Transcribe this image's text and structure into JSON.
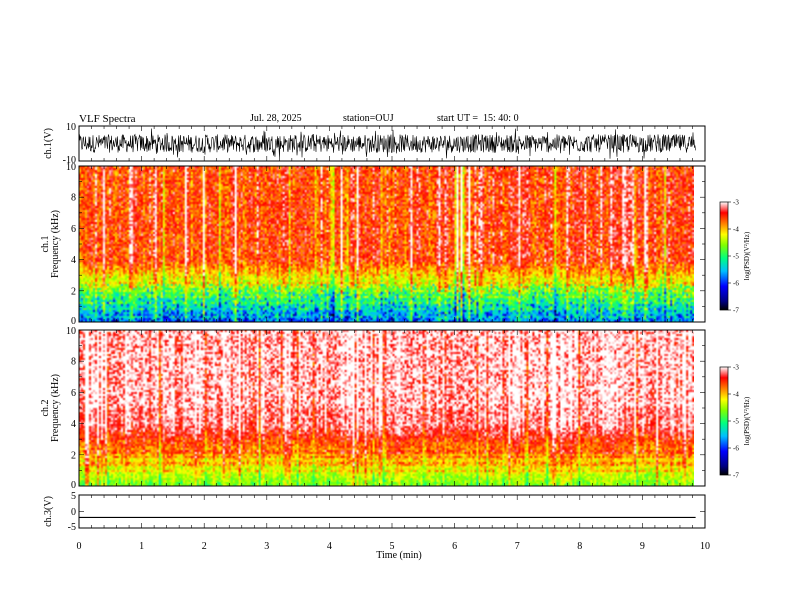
{
  "header": {
    "title": "VLF Spectra",
    "date": "Jul. 28, 2025",
    "station": "station=OUJ",
    "start": "start UT =  15: 40: 0"
  },
  "chart_data": [
    {
      "type": "line",
      "panel": "ch1-waveform",
      "ylabel": "ch.1(V)",
      "ylim": [
        -10,
        10
      ],
      "yticks": [
        "10",
        "-10"
      ],
      "xlim": [
        0,
        10
      ],
      "description_values": {
        "baseline": 0,
        "typical_amplitude": 7
      }
    },
    {
      "type": "heatmap",
      "panel": "ch1-spectrogram",
      "ylabel_line1": "ch.1",
      "ylabel_line2": "Frequency (kHz)",
      "ylim": [
        0,
        10
      ],
      "yticks": [
        "0",
        "2",
        "4",
        "6",
        "8",
        "10"
      ],
      "xlim": [
        0,
        9.85
      ],
      "colorbar": {
        "label": "log(PSD)(V²/Hz)",
        "range": [
          -7,
          -3
        ],
        "ticks": [
          "-3",
          "-4",
          "-5",
          "-6",
          "-7"
        ]
      }
    },
    {
      "type": "heatmap",
      "panel": "ch2-spectrogram",
      "ylabel_line1": "ch.2",
      "ylabel_line2": "Frequency (kHz)",
      "ylim": [
        0,
        10
      ],
      "yticks": [
        "0",
        "2",
        "4",
        "6",
        "8",
        "10"
      ],
      "xlim": [
        0,
        9.85
      ],
      "colorbar": {
        "label": "log(PSD)(V²/Hz)",
        "range": [
          -7,
          -3
        ],
        "ticks": [
          "-3",
          "-4",
          "-5",
          "-6",
          "-7"
        ]
      }
    },
    {
      "type": "line",
      "panel": "ch3-waveform",
      "ylabel": "ch.3(V)",
      "ylim": [
        -5,
        5
      ],
      "yticks": [
        "5",
        "0",
        "-5"
      ],
      "x": [
        0,
        9.85
      ],
      "y": [
        -1.8,
        -1.8
      ]
    }
  ],
  "xaxis": {
    "label": "Time (min)",
    "range": [
      0,
      10
    ],
    "ticks": [
      "0",
      "1",
      "2",
      "3",
      "4",
      "5",
      "6",
      "7",
      "8",
      "9",
      "10"
    ]
  }
}
